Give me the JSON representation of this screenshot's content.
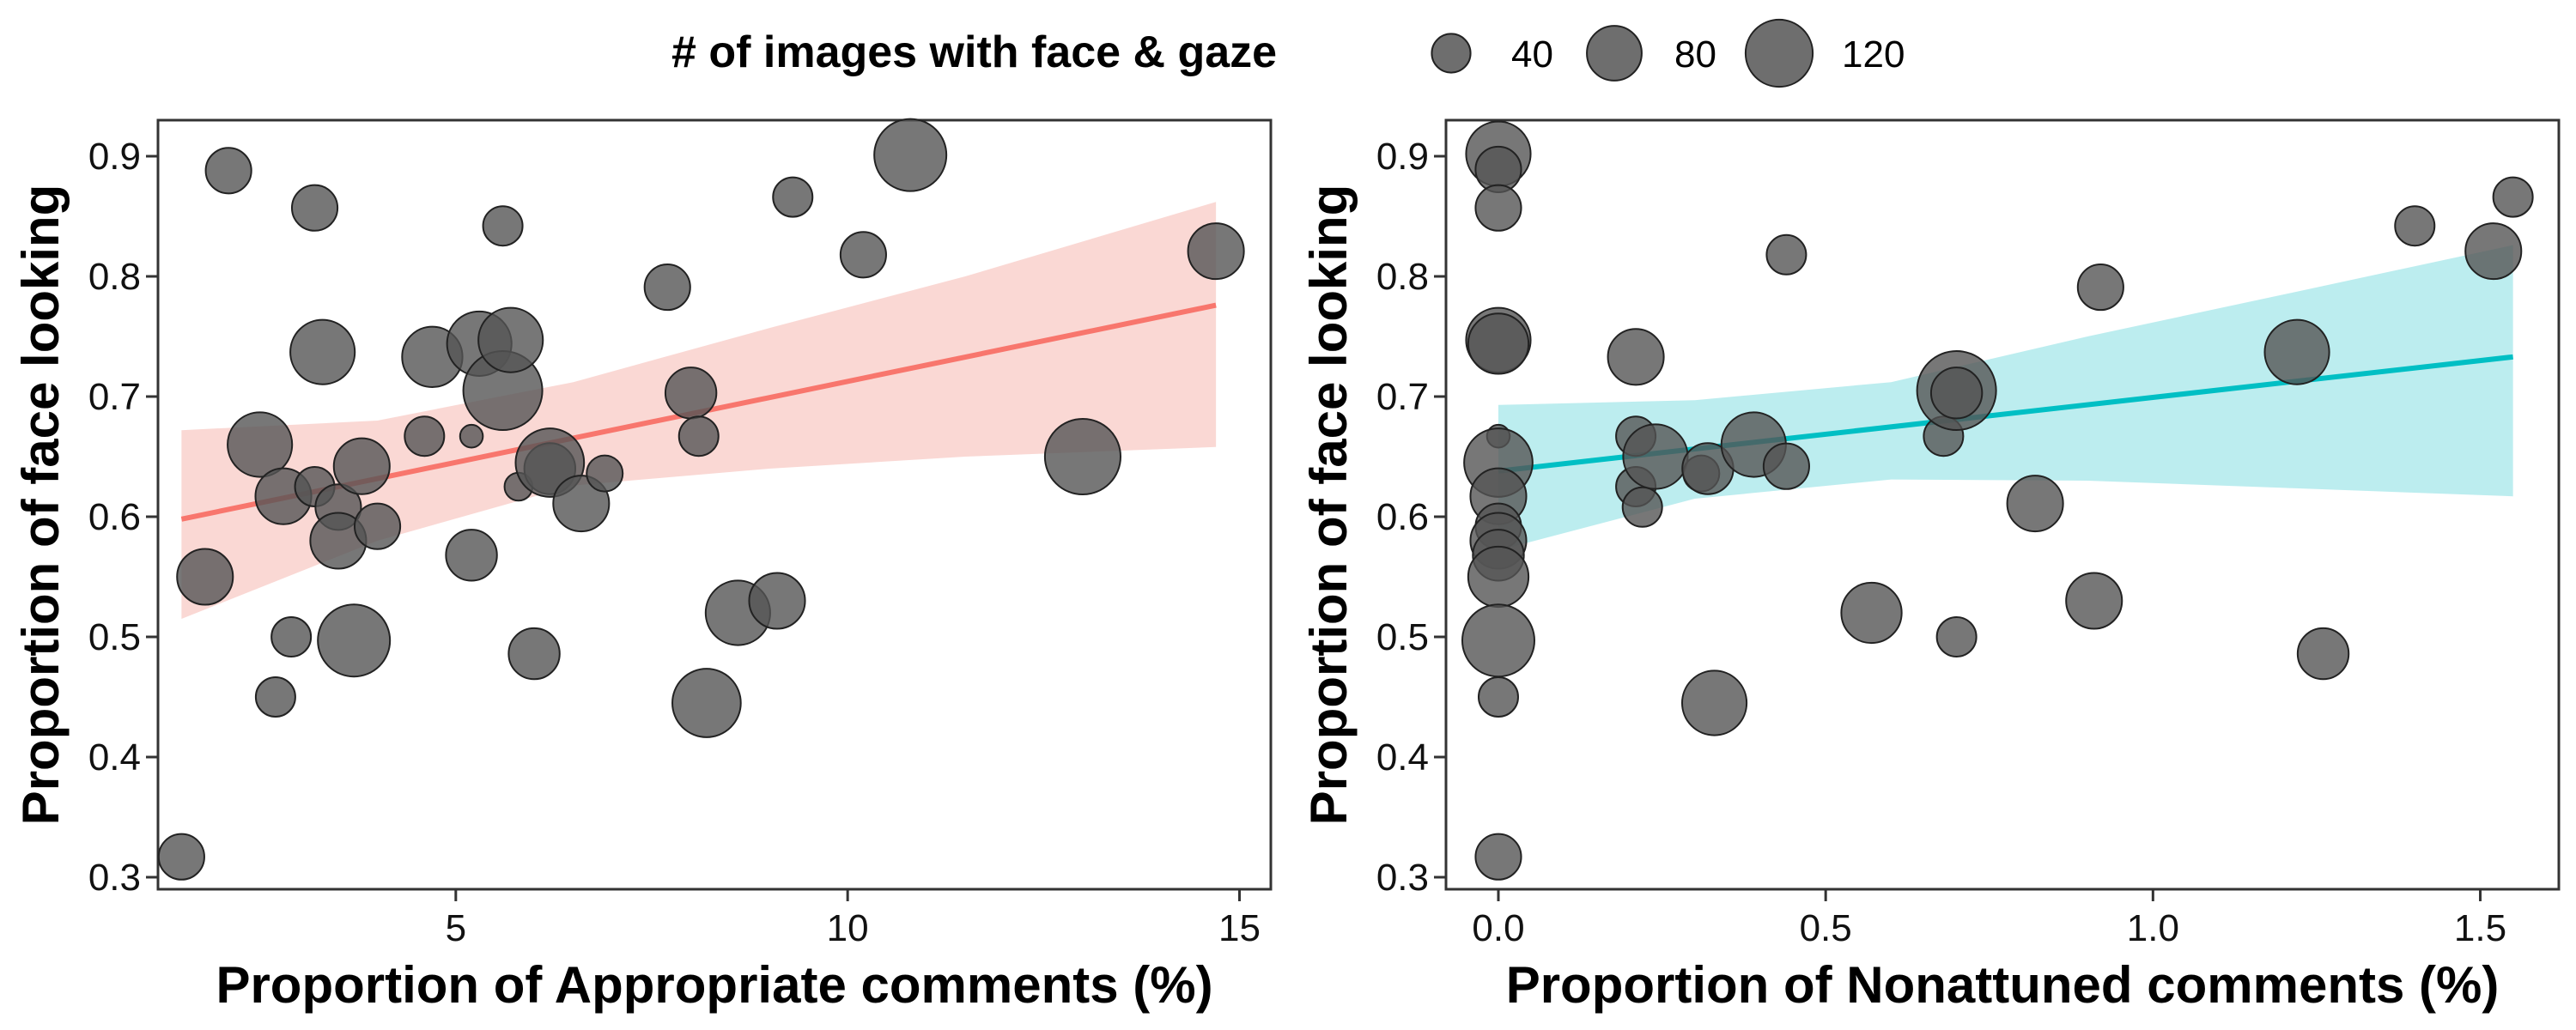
{
  "legend": {
    "title": "# of images with face & gaze",
    "entries": [
      {
        "label": "40",
        "size": 40
      },
      {
        "label": "80",
        "size": 80
      },
      {
        "label": "120",
        "size": 120
      }
    ]
  },
  "colors": {
    "point_fill": "#555555",
    "point_stroke": "#222222",
    "panel_border": "#333333",
    "left_line": "#f8766d",
    "left_band": "#f8c7c2",
    "right_line": "#00bfc4",
    "right_band": "#9fe6e8"
  },
  "chart_data": [
    {
      "type": "scatter",
      "title": "",
      "xlabel": "Proportion of Appropriate comments (%)",
      "ylabel": "Proportion of face looking",
      "xlim": [
        1.2,
        15.4
      ],
      "ylim": [
        0.29,
        0.93
      ],
      "xticks": [
        {
          "value": 5,
          "label": "5"
        },
        {
          "value": 10,
          "label": "10"
        },
        {
          "value": 15,
          "label": "15"
        }
      ],
      "yticks": [
        {
          "value": 0.3,
          "label": "0.3"
        },
        {
          "value": 0.4,
          "label": "0.4"
        },
        {
          "value": 0.5,
          "label": "0.5"
        },
        {
          "value": 0.6,
          "label": "0.6"
        },
        {
          "value": 0.7,
          "label": "0.7"
        },
        {
          "value": 0.8,
          "label": "0.8"
        },
        {
          "value": 0.9,
          "label": "0.9"
        }
      ],
      "trend": {
        "line": [
          [
            1.5,
            0.598
          ],
          [
            14.7,
            0.776
          ]
        ],
        "band_x": [
          1.5,
          4.0,
          6.5,
          9.0,
          11.5,
          14.7
        ],
        "band_lower": [
          0.515,
          0.58,
          0.626,
          0.64,
          0.65,
          0.658
        ],
        "band_upper": [
          0.672,
          0.68,
          0.712,
          0.757,
          0.8,
          0.862
        ]
      },
      "points": [
        {
          "x": 1.5,
          "y": 0.317,
          "size": 40
        },
        {
          "x": 2.1,
          "y": 0.888,
          "size": 40
        },
        {
          "x": 1.8,
          "y": 0.55,
          "size": 60
        },
        {
          "x": 2.5,
          "y": 0.66,
          "size": 80
        },
        {
          "x": 2.8,
          "y": 0.617,
          "size": 60
        },
        {
          "x": 2.7,
          "y": 0.45,
          "size": 30
        },
        {
          "x": 2.9,
          "y": 0.5,
          "size": 30
        },
        {
          "x": 3.2,
          "y": 0.857,
          "size": 40
        },
        {
          "x": 3.2,
          "y": 0.625,
          "size": 30
        },
        {
          "x": 3.3,
          "y": 0.737,
          "size": 80
        },
        {
          "x": 3.5,
          "y": 0.608,
          "size": 40
        },
        {
          "x": 3.5,
          "y": 0.58,
          "size": 60
        },
        {
          "x": 3.7,
          "y": 0.497,
          "size": 100
        },
        {
          "x": 3.8,
          "y": 0.642,
          "size": 60
        },
        {
          "x": 4.0,
          "y": 0.592,
          "size": 40
        },
        {
          "x": 4.6,
          "y": 0.667,
          "size": 30
        },
        {
          "x": 4.7,
          "y": 0.733,
          "size": 70
        },
        {
          "x": 5.2,
          "y": 0.568,
          "size": 50
        },
        {
          "x": 5.2,
          "y": 0.667,
          "size": 10
        },
        {
          "x": 5.3,
          "y": 0.744,
          "size": 80
        },
        {
          "x": 5.6,
          "y": 0.842,
          "size": 30
        },
        {
          "x": 5.6,
          "y": 0.705,
          "size": 120
        },
        {
          "x": 5.7,
          "y": 0.747,
          "size": 80
        },
        {
          "x": 5.8,
          "y": 0.625,
          "size": 15
        },
        {
          "x": 6.0,
          "y": 0.486,
          "size": 50
        },
        {
          "x": 6.2,
          "y": 0.64,
          "size": 50
        },
        {
          "x": 6.2,
          "y": 0.645,
          "size": 90
        },
        {
          "x": 6.6,
          "y": 0.611,
          "size": 60
        },
        {
          "x": 6.9,
          "y": 0.636,
          "size": 25
        },
        {
          "x": 7.7,
          "y": 0.791,
          "size": 40
        },
        {
          "x": 8.0,
          "y": 0.703,
          "size": 50
        },
        {
          "x": 8.1,
          "y": 0.667,
          "size": 30
        },
        {
          "x": 8.2,
          "y": 0.445,
          "size": 90
        },
        {
          "x": 8.6,
          "y": 0.52,
          "size": 80
        },
        {
          "x": 9.1,
          "y": 0.53,
          "size": 60
        },
        {
          "x": 9.3,
          "y": 0.866,
          "size": 30
        },
        {
          "x": 10.2,
          "y": 0.818,
          "size": 40
        },
        {
          "x": 10.8,
          "y": 0.901,
          "size": 100
        },
        {
          "x": 13.0,
          "y": 0.65,
          "size": 110
        },
        {
          "x": 14.7,
          "y": 0.821,
          "size": 60
        }
      ]
    },
    {
      "type": "scatter",
      "title": "",
      "xlabel": "Proportion of Nonattuned comments (%)",
      "ylabel": "Proportion of face looking",
      "xlim": [
        -0.08,
        1.62
      ],
      "ylim": [
        0.29,
        0.93
      ],
      "xticks": [
        {
          "value": 0.0,
          "label": "0.0"
        },
        {
          "value": 0.5,
          "label": "0.5"
        },
        {
          "value": 1.0,
          "label": "1.0"
        },
        {
          "value": 1.5,
          "label": "1.5"
        }
      ],
      "yticks": [
        {
          "value": 0.3,
          "label": "0.3"
        },
        {
          "value": 0.4,
          "label": "0.4"
        },
        {
          "value": 0.5,
          "label": "0.5"
        },
        {
          "value": 0.6,
          "label": "0.6"
        },
        {
          "value": 0.7,
          "label": "0.7"
        },
        {
          "value": 0.8,
          "label": "0.8"
        },
        {
          "value": 0.9,
          "label": "0.9"
        }
      ],
      "trend": {
        "line": [
          [
            0.0,
            0.638
          ],
          [
            1.55,
            0.733
          ]
        ],
        "band_x": [
          0.0,
          0.3,
          0.6,
          0.9,
          1.2,
          1.55
        ],
        "band_lower": [
          0.572,
          0.615,
          0.631,
          0.63,
          0.624,
          0.617
        ],
        "band_upper": [
          0.693,
          0.697,
          0.712,
          0.75,
          0.785,
          0.826
        ]
      },
      "points": [
        {
          "x": 0.0,
          "y": 0.902,
          "size": 80
        },
        {
          "x": 0.0,
          "y": 0.889,
          "size": 40
        },
        {
          "x": 0.0,
          "y": 0.857,
          "size": 40
        },
        {
          "x": 0.0,
          "y": 0.747,
          "size": 80
        },
        {
          "x": 0.0,
          "y": 0.744,
          "size": 70
        },
        {
          "x": 0.0,
          "y": 0.667,
          "size": 10
        },
        {
          "x": 0.0,
          "y": 0.645,
          "size": 90
        },
        {
          "x": 0.0,
          "y": 0.617,
          "size": 60
        },
        {
          "x": 0.0,
          "y": 0.592,
          "size": 40
        },
        {
          "x": 0.0,
          "y": 0.58,
          "size": 60
        },
        {
          "x": 0.0,
          "y": 0.568,
          "size": 50
        },
        {
          "x": 0.0,
          "y": 0.55,
          "size": 70
        },
        {
          "x": 0.0,
          "y": 0.497,
          "size": 100
        },
        {
          "x": 0.0,
          "y": 0.45,
          "size": 30
        },
        {
          "x": 0.0,
          "y": 0.317,
          "size": 40
        },
        {
          "x": 0.21,
          "y": 0.733,
          "size": 60
        },
        {
          "x": 0.21,
          "y": 0.667,
          "size": 30
        },
        {
          "x": 0.21,
          "y": 0.625,
          "size": 30
        },
        {
          "x": 0.22,
          "y": 0.608,
          "size": 30
        },
        {
          "x": 0.24,
          "y": 0.65,
          "size": 80
        },
        {
          "x": 0.31,
          "y": 0.636,
          "size": 25
        },
        {
          "x": 0.32,
          "y": 0.64,
          "size": 50
        },
        {
          "x": 0.33,
          "y": 0.445,
          "size": 80
        },
        {
          "x": 0.39,
          "y": 0.66,
          "size": 80
        },
        {
          "x": 0.44,
          "y": 0.818,
          "size": 30
        },
        {
          "x": 0.44,
          "y": 0.642,
          "size": 40
        },
        {
          "x": 0.57,
          "y": 0.52,
          "size": 70
        },
        {
          "x": 0.68,
          "y": 0.667,
          "size": 30
        },
        {
          "x": 0.7,
          "y": 0.705,
          "size": 120
        },
        {
          "x": 0.7,
          "y": 0.703,
          "size": 50
        },
        {
          "x": 0.7,
          "y": 0.5,
          "size": 30
        },
        {
          "x": 0.82,
          "y": 0.611,
          "size": 60
        },
        {
          "x": 0.91,
          "y": 0.53,
          "size": 60
        },
        {
          "x": 0.92,
          "y": 0.791,
          "size": 40
        },
        {
          "x": 1.22,
          "y": 0.737,
          "size": 80
        },
        {
          "x": 1.26,
          "y": 0.486,
          "size": 50
        },
        {
          "x": 1.4,
          "y": 0.842,
          "size": 30
        },
        {
          "x": 1.52,
          "y": 0.821,
          "size": 60
        },
        {
          "x": 1.55,
          "y": 0.866,
          "size": 30
        }
      ]
    }
  ]
}
